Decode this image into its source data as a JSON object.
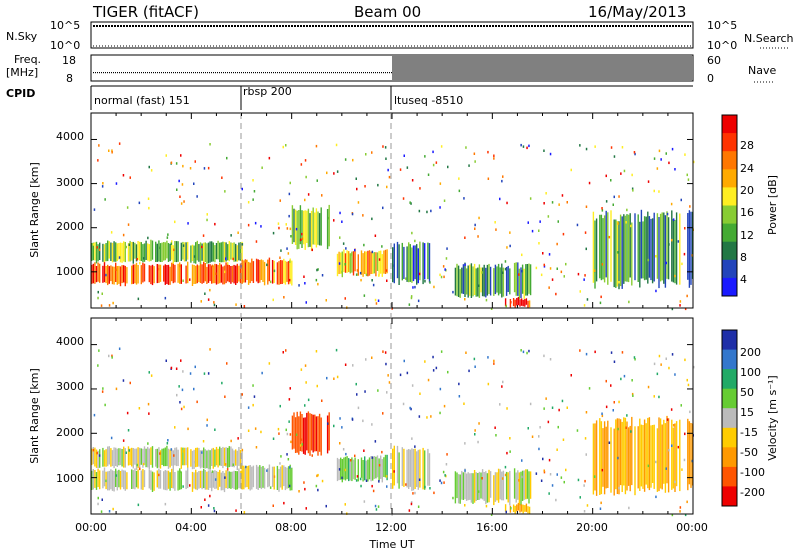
{
  "header": {
    "title": "TIGER (fitACF)",
    "beam": "Beam 00",
    "date": "16/May/2013"
  },
  "aux_panels": {
    "nsky_label": "N.Sky",
    "nsky_ticks": [
      "10^5",
      "10^0"
    ],
    "nsearch_label": "N.Search",
    "nsearch_ticks": [
      "10^5",
      "10^0"
    ],
    "freq_label_1": "Freq.",
    "freq_label_2": "[MHz]",
    "freq_ticks": [
      "18",
      "8"
    ],
    "nave_label": "Nave",
    "nave_ticks": [
      "60",
      "0"
    ],
    "cpid_label": "CPID",
    "cpid_segments": [
      "normal (fast) 151",
      "rbsp 200",
      "ltuseq -8510"
    ]
  },
  "axes": {
    "ylabel": "Slant Range [km]",
    "yticks": [
      "4000",
      "3000",
      "2000",
      "1000"
    ],
    "xlabel": "Time UT",
    "xticks": [
      "00:00",
      "04:00",
      "08:00",
      "12:00",
      "16:00",
      "20:00",
      "00:00"
    ]
  },
  "colorbars": {
    "power_label": "Power [dB]",
    "power_ticks": [
      "28",
      "24",
      "20",
      "16",
      "12",
      "8",
      "4"
    ],
    "power_colors": [
      "#1a1aff",
      "#2244bb",
      "#227744",
      "#44aa33",
      "#88cc33",
      "#ffee22",
      "#ffaa00",
      "#ff7700",
      "#ff3300",
      "#ee0000"
    ],
    "velocity_label": "Velocity [m s⁻¹]",
    "velocity_ticks": [
      "200",
      "100",
      "50",
      "15",
      "-15",
      "-50",
      "-100",
      "-200"
    ],
    "velocity_colors": [
      "#1f2fa8",
      "#3377cc",
      "#22aa66",
      "#66cc33",
      "#bbbbbb",
      "#ffcc00",
      "#ff9900",
      "#ff5500",
      "#ee0000"
    ]
  },
  "chart_data": {
    "type": "heatmap",
    "title": "TIGER (fitACF)",
    "subtitle": "Beam 00",
    "date": "16/May/2013",
    "xlabel": "Time UT",
    "ylabel": "Slant Range [km]",
    "x_range_hours": [
      0,
      24
    ],
    "y_range_km": [
      180,
      4600
    ],
    "cpid_periods": [
      {
        "name": "normal (fast) 151",
        "start_h": 0,
        "end_h": 6
      },
      {
        "name": "rbsp 200",
        "start_h": 6,
        "end_h": 12
      },
      {
        "name": "ltuseq -8510",
        "start_h": 12,
        "end_h": 24
      }
    ],
    "frequency_mhz_approx": [
      10,
      10
    ],
    "power_db_range": [
      0,
      30
    ],
    "velocity_ms_range": [
      -200,
      200
    ],
    "echo_regions": [
      {
        "t0": 0.0,
        "t1": 6.0,
        "r0": 700,
        "r1": 1200,
        "power": 24,
        "velocity": 0
      },
      {
        "t0": 0.0,
        "t1": 6.0,
        "r0": 1200,
        "r1": 1700,
        "power": 12,
        "velocity": 0
      },
      {
        "t0": 6.0,
        "t1": 8.0,
        "r0": 700,
        "r1": 1300,
        "power": 22,
        "velocity": 5
      },
      {
        "t0": 8.0,
        "t1": 9.5,
        "r0": 1500,
        "r1": 2500,
        "power": 14,
        "velocity": -150
      },
      {
        "t0": 9.8,
        "t1": 11.8,
        "r0": 900,
        "r1": 1500,
        "power": 20,
        "velocity": 40
      },
      {
        "t0": 12.0,
        "t1": 13.5,
        "r0": 700,
        "r1": 1700,
        "power": 8,
        "velocity": 0
      },
      {
        "t0": 14.5,
        "t1": 17.5,
        "r0": 400,
        "r1": 1200,
        "power": 10,
        "velocity": 0
      },
      {
        "t0": 16.5,
        "t1": 17.5,
        "r0": 200,
        "r1": 400,
        "power": 26,
        "velocity": -60
      },
      {
        "t0": 20.0,
        "t1": 24.0,
        "r0": 600,
        "r1": 2400,
        "power": 10,
        "velocity": -70
      }
    ]
  }
}
